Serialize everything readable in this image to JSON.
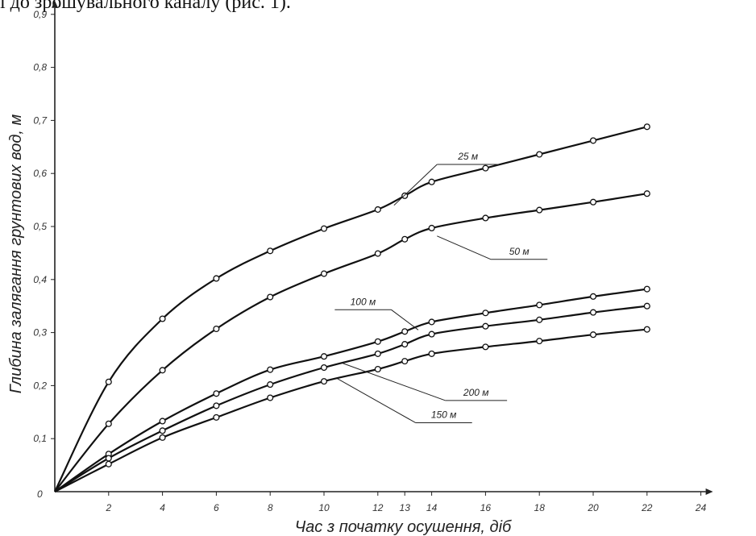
{
  "header_text": "ї до зрошувального каналу (рис. 1).",
  "chart_data": {
    "type": "line",
    "title": "",
    "xlabel": "Час з початку осушення, діб",
    "ylabel": "Глибина залягання грунтових вод, м",
    "origin_label": "0",
    "xlim": [
      0,
      24
    ],
    "ylim": [
      0,
      0.9
    ],
    "x_ticks": [
      {
        "value": 2,
        "label": "2"
      },
      {
        "value": 4,
        "label": "4"
      },
      {
        "value": 6,
        "label": "6"
      },
      {
        "value": 8,
        "label": "8"
      },
      {
        "value": 10,
        "label": "10"
      },
      {
        "value": 12,
        "label": "12"
      },
      {
        "value": 13,
        "label": "13"
      },
      {
        "value": 14,
        "label": "14"
      },
      {
        "value": 16,
        "label": "16"
      },
      {
        "value": 18,
        "label": "18"
      },
      {
        "value": 20,
        "label": "20"
      },
      {
        "value": 22,
        "label": "22"
      },
      {
        "value": 24,
        "label": "24"
      }
    ],
    "y_ticks": [
      {
        "value": 0.1,
        "label": "0,1"
      },
      {
        "value": 0.2,
        "label": "0,2"
      },
      {
        "value": 0.3,
        "label": "0,3"
      },
      {
        "value": 0.4,
        "label": "0,4"
      },
      {
        "value": 0.5,
        "label": "0,5"
      },
      {
        "value": 0.6,
        "label": "0,6"
      },
      {
        "value": 0.7,
        "label": "0,7"
      },
      {
        "value": 0.8,
        "label": "0,8"
      },
      {
        "value": 0.9,
        "label": "0,9"
      }
    ],
    "grid": false,
    "series": [
      {
        "name": "25 м",
        "x": [
          0,
          2,
          4,
          6,
          8,
          10,
          12,
          13,
          14,
          16,
          18,
          20,
          22
        ],
        "values": [
          0,
          0.207,
          0.326,
          0.402,
          0.454,
          0.496,
          0.532,
          0.558,
          0.584,
          0.61,
          0.636,
          0.662,
          0.688
        ]
      },
      {
        "name": "50 м",
        "x": [
          0,
          2,
          4,
          6,
          8,
          10,
          12,
          13,
          14,
          16,
          18,
          20,
          22
        ],
        "values": [
          0,
          0.128,
          0.229,
          0.307,
          0.367,
          0.411,
          0.449,
          0.476,
          0.497,
          0.516,
          0.531,
          0.546,
          0.562
        ]
      },
      {
        "name": "100 м",
        "x": [
          0,
          2,
          4,
          6,
          8,
          10,
          12,
          13,
          14,
          16,
          18,
          20,
          22
        ],
        "values": [
          0,
          0.071,
          0.133,
          0.185,
          0.23,
          0.255,
          0.283,
          0.302,
          0.32,
          0.337,
          0.352,
          0.368,
          0.382
        ]
      },
      {
        "name": "200 м",
        "x": [
          0,
          2,
          4,
          6,
          8,
          10,
          12,
          13,
          14,
          16,
          18,
          20,
          22
        ],
        "values": [
          0,
          0.063,
          0.115,
          0.162,
          0.202,
          0.234,
          0.26,
          0.278,
          0.297,
          0.312,
          0.324,
          0.338,
          0.35
        ]
      },
      {
        "name": "150 м",
        "x": [
          0,
          2,
          4,
          6,
          8,
          10,
          12,
          13,
          14,
          16,
          18,
          20,
          22
        ],
        "values": [
          0,
          0.052,
          0.102,
          0.14,
          0.177,
          0.208,
          0.231,
          0.246,
          0.26,
          0.273,
          0.284,
          0.296,
          0.306
        ]
      }
    ]
  }
}
